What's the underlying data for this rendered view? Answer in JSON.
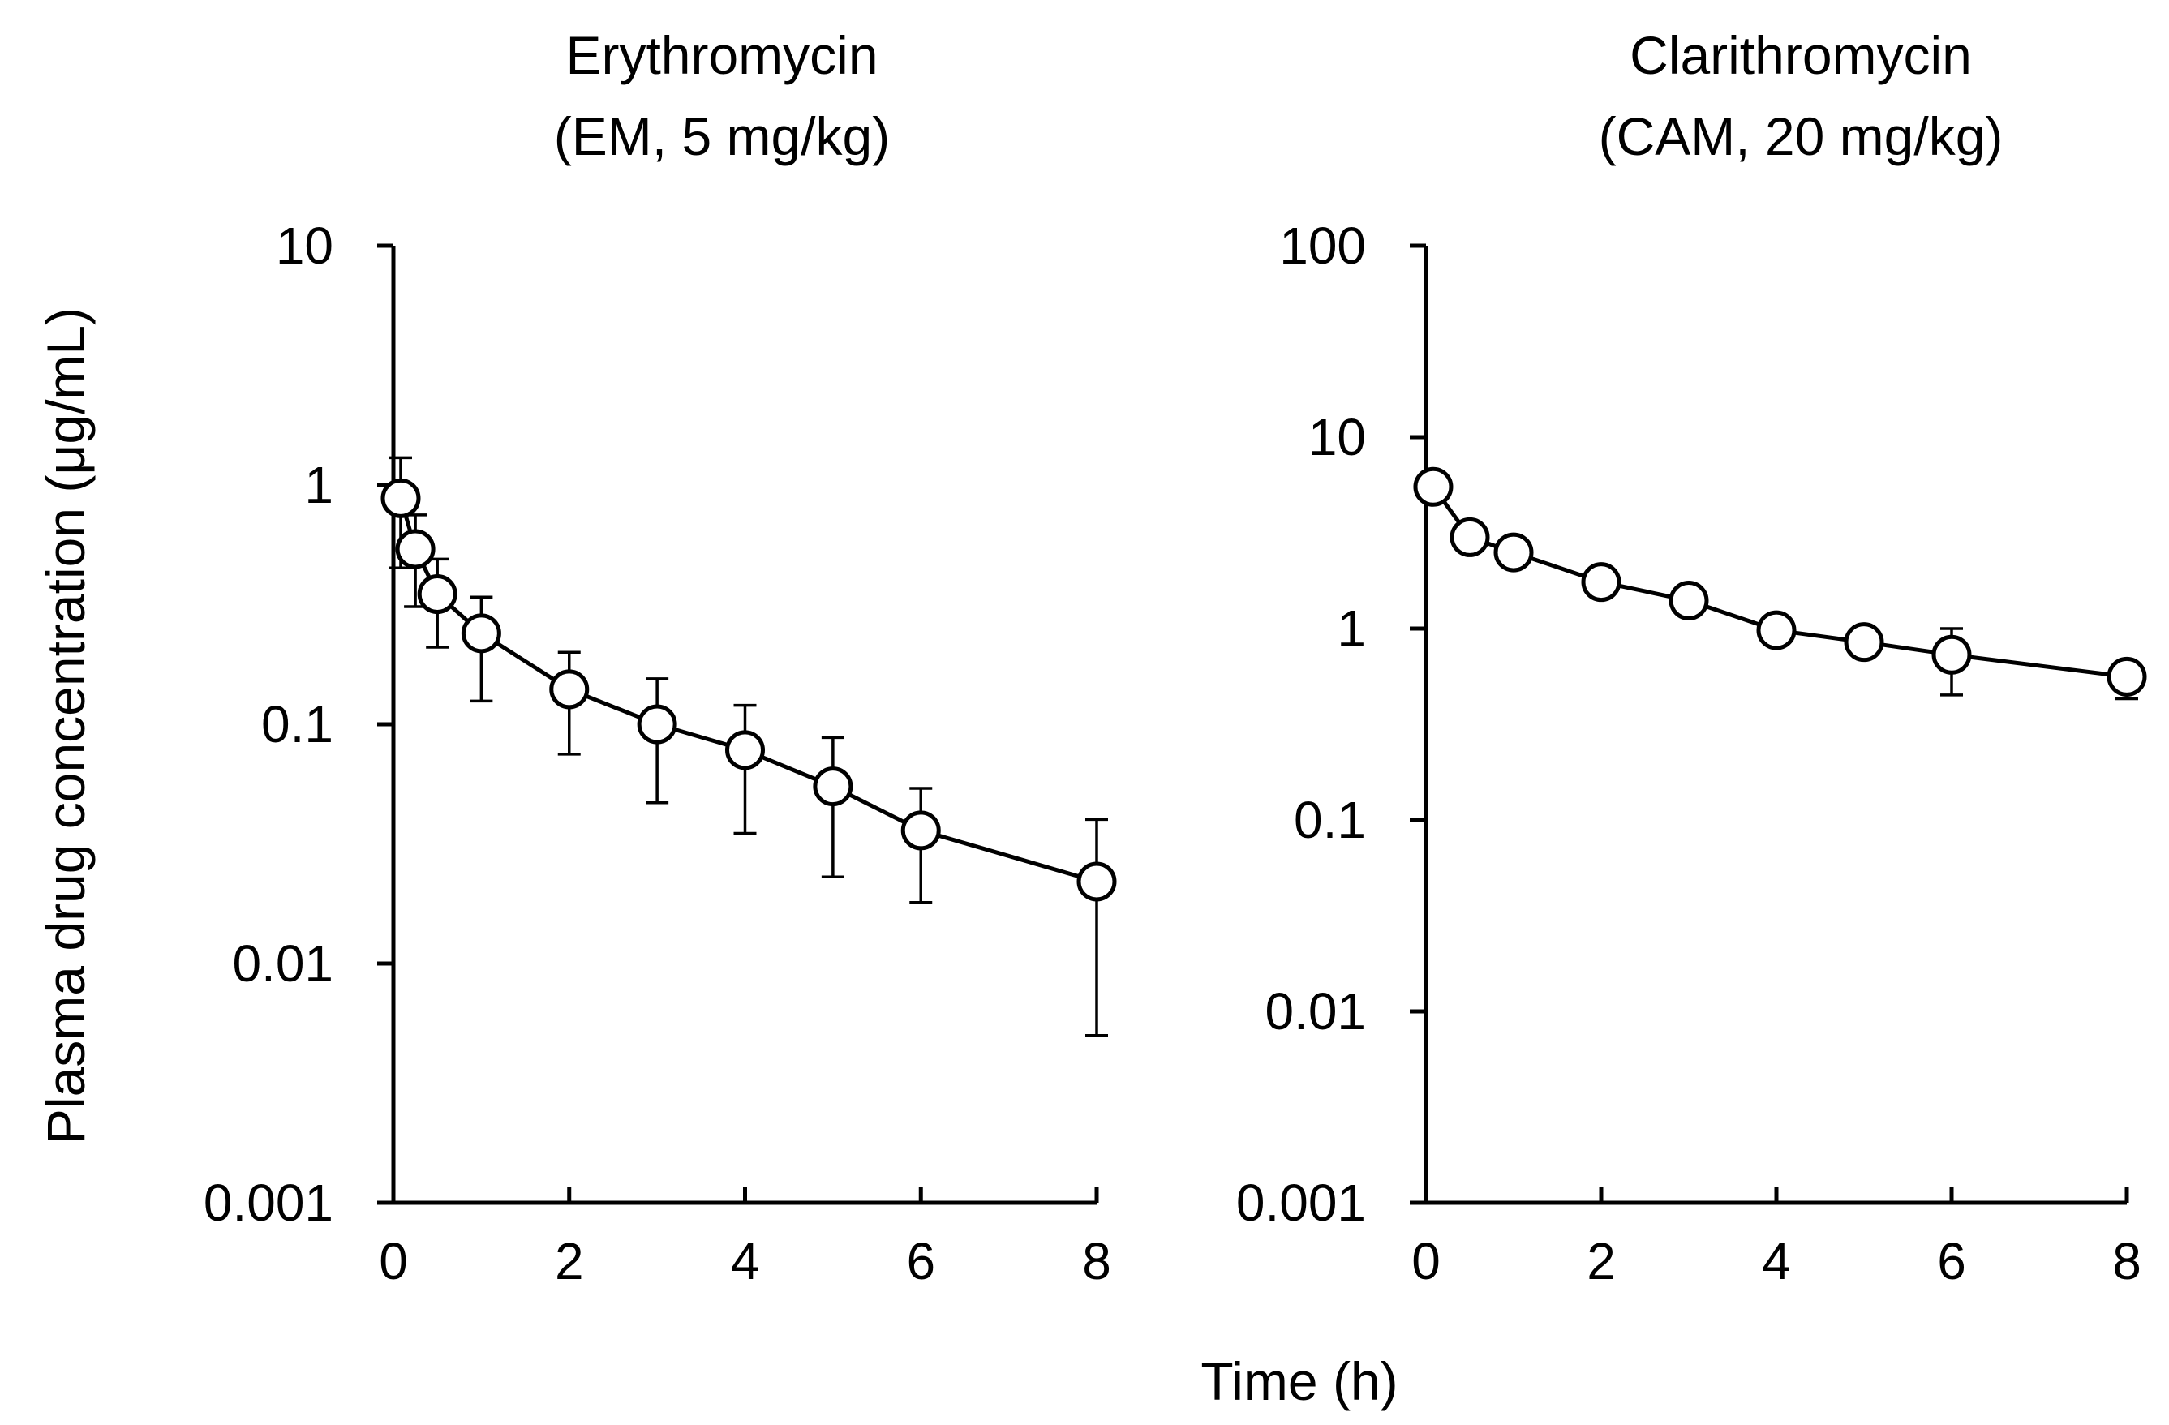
{
  "figure": {
    "xlabel": "Time (h)",
    "ylabel": "Plasma drug concentration (μg/mL)"
  },
  "chart_data": [
    {
      "type": "line",
      "title": "Erythromycin",
      "subtitle": "(EM, 5 mg/kg)",
      "xlabel": "Time (h)",
      "ylabel": "Plasma drug concentration (μg/mL)",
      "yscale": "log",
      "xlim": [
        0,
        8
      ],
      "ylim": [
        0.001,
        10
      ],
      "xticks": [
        0,
        2,
        4,
        6,
        8
      ],
      "xtick_labels": [
        "0",
        "2",
        "4",
        "6",
        "8"
      ],
      "yticks": [
        0.001,
        0.01,
        0.1,
        1,
        10
      ],
      "ytick_labels": [
        "0.001",
        "0.01",
        "0.1",
        "1",
        "10"
      ],
      "grid": false,
      "series": [
        {
          "name": "EM",
          "x": [
            0.083,
            0.25,
            0.5,
            1,
            2,
            3,
            4,
            5,
            6,
            8
          ],
          "y": [
            0.88,
            0.54,
            0.35,
            0.24,
            0.14,
            0.1,
            0.078,
            0.055,
            0.036,
            0.022
          ],
          "err_low": [
            0.45,
            0.31,
            0.21,
            0.125,
            0.075,
            0.047,
            0.035,
            0.023,
            0.018,
            0.005
          ],
          "err_high": [
            1.3,
            0.75,
            0.49,
            0.34,
            0.2,
            0.155,
            0.12,
            0.088,
            0.054,
            0.04
          ]
        }
      ]
    },
    {
      "type": "line",
      "title": "Clarithromycin",
      "subtitle": "(CAM, 20 mg/kg)",
      "xlabel": "Time (h)",
      "ylabel": "",
      "yscale": "log",
      "xlim": [
        0,
        8
      ],
      "ylim": [
        0.001,
        100
      ],
      "xticks": [
        0,
        2,
        4,
        6,
        8
      ],
      "xtick_labels": [
        "0",
        "2",
        "4",
        "6",
        "8"
      ],
      "yticks": [
        0.001,
        0.01,
        0.1,
        1,
        10,
        100
      ],
      "ytick_labels": [
        "0.001",
        "0.01",
        "0.1",
        "1",
        "10",
        "100"
      ],
      "grid": false,
      "series": [
        {
          "name": "CAM",
          "x": [
            0.083,
            0.5,
            1,
            2,
            3,
            4,
            5,
            6,
            8
          ],
          "y": [
            5.5,
            3.0,
            2.5,
            1.75,
            1.4,
            0.98,
            0.85,
            0.73,
            0.56
          ],
          "err_low": [
            null,
            null,
            null,
            null,
            null,
            null,
            null,
            0.45,
            0.43
          ],
          "err_high": [
            null,
            null,
            null,
            null,
            null,
            null,
            null,
            1.0,
            null
          ]
        }
      ]
    }
  ]
}
